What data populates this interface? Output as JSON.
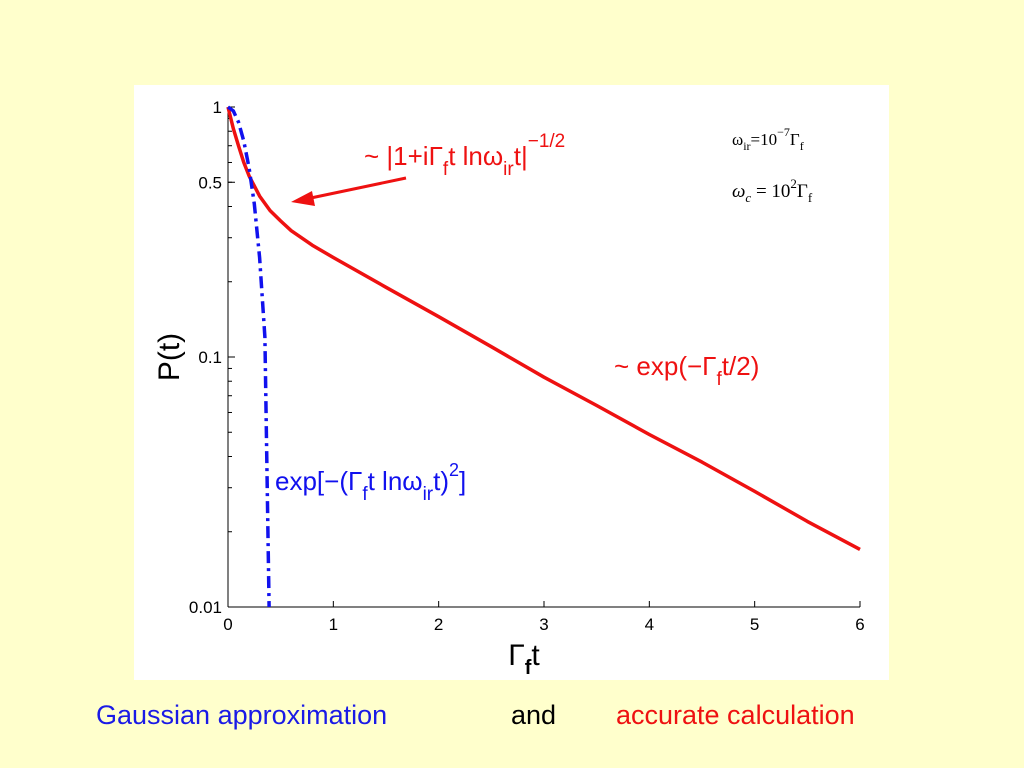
{
  "chart_data": {
    "type": "line",
    "xlabel_main": "Γ",
    "xlabel_sub": "f",
    "xlabel_tail": "t",
    "ylabel": "P(t)",
    "x_ticks": [
      "0",
      "1",
      "2",
      "3",
      "4",
      "5",
      "6"
    ],
    "y_ticks": [
      {
        "value": 1,
        "label": "1"
      },
      {
        "value": 0.5,
        "label": "0.5"
      },
      {
        "value": 0.1,
        "label": "0.1"
      },
      {
        "value": 0.01,
        "label": "0.01"
      }
    ],
    "xlim": [
      0,
      6
    ],
    "ylim": [
      0.01,
      1
    ],
    "yscale": "log",
    "grid": false,
    "series": [
      {
        "color": "#EE1111",
        "style": "solid",
        "x": [
          0,
          0.05,
          0.1,
          0.15,
          0.2,
          0.3,
          0.4,
          0.5,
          0.6,
          0.8,
          1.0,
          1.5,
          2.0,
          2.5,
          3.0,
          3.5,
          4.0,
          4.5,
          5.0,
          5.5,
          6.0
        ],
        "y": [
          1.0,
          0.82,
          0.7,
          0.6,
          0.53,
          0.44,
          0.385,
          0.35,
          0.32,
          0.28,
          0.25,
          0.19,
          0.145,
          0.11,
          0.083,
          0.064,
          0.049,
          0.038,
          0.029,
          0.022,
          0.017
        ]
      },
      {
        "color": "#1111EE",
        "style": "dash-dot",
        "x": [
          0,
          0.05,
          0.1,
          0.15,
          0.2,
          0.25,
          0.3,
          0.35,
          0.39
        ],
        "y": [
          1.0,
          0.965,
          0.87,
          0.73,
          0.57,
          0.41,
          0.25,
          0.12,
          0.01
        ]
      }
    ],
    "annotations": {
      "red_power_law": {
        "prefix": "~ |1+iΓ",
        "sub1": "f",
        "mid": "t lnω",
        "sub2": "ir",
        "tail": "t|",
        "sup": "−1/2"
      },
      "red_exp": {
        "prefix": "~ exp(−Γ",
        "sub": "f",
        "tail": "t/2)"
      },
      "blue_gauss": {
        "prefix": "exp[−(Γ",
        "sub1": "f",
        "mid": "t lnω",
        "sub2": "ir",
        "tail": "t)",
        "sup": "2",
        "end": "]"
      },
      "param_omega_ir": {
        "base": "ω",
        "sub": "ir",
        "mid": "=10",
        "sup": "−7",
        "end": "Γ",
        "end_sub": "f"
      },
      "param_omega_c": {
        "base": "ω",
        "sub": "c",
        "mid": " = 10",
        "sup": "2",
        "end": "Γ",
        "end_sub": "f"
      }
    }
  },
  "caption": {
    "gaussian": "Gaussian approximation",
    "and": "and",
    "accurate": "accurate calculation"
  },
  "colors": {
    "background": "#FFFFCC",
    "panel": "#FFFFFF",
    "red": "#EE1111",
    "blue": "#1111EE",
    "caption_blue": "#1A1AE6",
    "caption_red": "#EE1111",
    "axis": "#000000"
  }
}
